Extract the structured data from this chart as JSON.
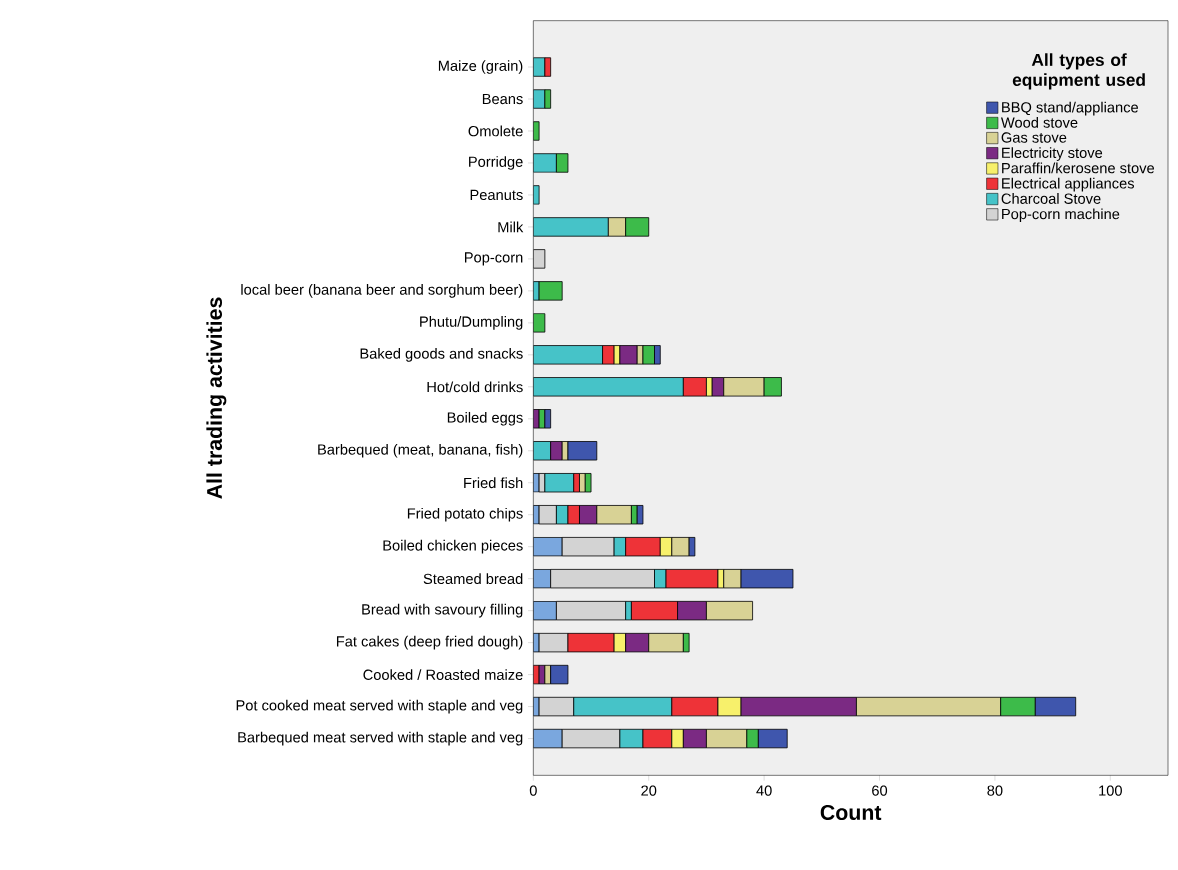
{
  "chart_data": {
    "type": "bar",
    "orientation": "horizontal",
    "stacked": true,
    "xlabel": "Count",
    "ylabel": "All trading activities",
    "legend_title": "All types of equipment used",
    "legend": "top right",
    "xlim": [
      0,
      110
    ],
    "xticks": [
      0,
      20,
      40,
      60,
      80,
      100
    ],
    "categories": [
      "Maize (grain)",
      "Beans",
      "Omolete",
      "Porridge",
      "Peanuts",
      "Milk",
      "Pop-corn",
      "local beer (banana beer and sorghum beer)",
      "Phutu/Dumpling",
      "Baked goods and snacks",
      "Hot/cold drinks",
      "Boiled eggs",
      "Barbequed (meat, banana, fish)",
      "Fried fish",
      "Fried potato chips",
      "Boiled chicken pieces",
      "Steamed bread",
      "Bread with savoury filling",
      "Fat cakes (deep fried dough)",
      "Cooked / Roasted maize",
      "Pot cooked meat served with staple and veg",
      "Barbequed meat served with staple and veg"
    ],
    "series": [
      {
        "color": "#7aa7de",
        "values": [
          null,
          null,
          null,
          null,
          null,
          null,
          null,
          null,
          null,
          null,
          null,
          null,
          null,
          1,
          1,
          5,
          3,
          4,
          1,
          null,
          1,
          5
        ]
      },
      {
        "name": "Pop-corn machine",
        "color": "#d3d3d3",
        "values": [
          null,
          null,
          null,
          null,
          null,
          null,
          2,
          null,
          null,
          null,
          null,
          null,
          null,
          1,
          3,
          9,
          18,
          12,
          5,
          null,
          6,
          10
        ]
      },
      {
        "name": "Charcoal Stove",
        "color": "#46c3c8",
        "values": [
          2,
          2,
          null,
          4,
          1,
          13,
          null,
          1,
          null,
          12,
          26,
          null,
          3,
          5,
          2,
          2,
          2,
          1,
          null,
          null,
          17,
          4
        ]
      },
      {
        "name": "Electrical appliances",
        "color": "#ee3338",
        "values": [
          1,
          null,
          null,
          null,
          null,
          null,
          null,
          null,
          null,
          2,
          4,
          null,
          null,
          1,
          2,
          6,
          9,
          8,
          8,
          1,
          8,
          5
        ]
      },
      {
        "name": "Paraffin/kerosene stove",
        "color": "#f7f06b",
        "values": [
          null,
          null,
          null,
          null,
          null,
          null,
          null,
          null,
          null,
          1,
          1,
          null,
          null,
          null,
          null,
          2,
          1,
          null,
          2,
          null,
          4,
          2
        ]
      },
      {
        "name": "Electricity stove",
        "color": "#7b2a83",
        "values": [
          null,
          null,
          null,
          null,
          null,
          null,
          null,
          null,
          null,
          3,
          2,
          1,
          2,
          null,
          3,
          null,
          null,
          5,
          4,
          1,
          20,
          4
        ]
      },
      {
        "name": "Gas stove",
        "color": "#d8d295",
        "values": [
          null,
          null,
          null,
          null,
          null,
          3,
          null,
          null,
          null,
          1,
          7,
          null,
          1,
          1,
          6,
          3,
          3,
          8,
          6,
          1,
          25,
          7
        ]
      },
      {
        "name": "Wood stove",
        "color": "#3dbb4a",
        "values": [
          null,
          1,
          1,
          2,
          null,
          4,
          null,
          4,
          2,
          2,
          3,
          1,
          null,
          1,
          1,
          null,
          null,
          null,
          1,
          null,
          6,
          2
        ]
      },
      {
        "name": "BBQ stand/appliance",
        "color": "#3f56ad",
        "values": [
          null,
          null,
          null,
          null,
          null,
          null,
          null,
          null,
          null,
          1,
          null,
          1,
          5,
          null,
          1,
          1,
          9,
          null,
          null,
          3,
          7,
          5
        ]
      }
    ]
  }
}
